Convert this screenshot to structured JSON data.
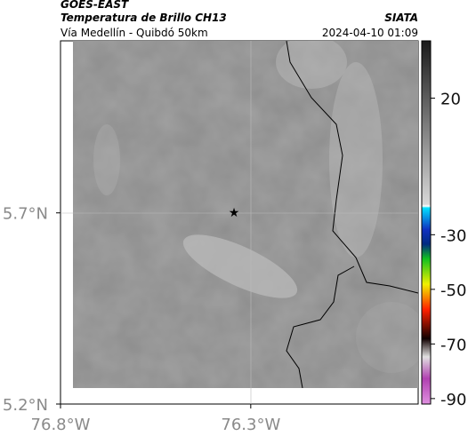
{
  "header": {
    "satellite": "GOES-EAST",
    "product": "Temperatura de Brillo CH13",
    "source": "SIATA",
    "route": "Vía Medellín - Quibdó 50km",
    "timestamp": "2024-04-10 01:09"
  },
  "map": {
    "lon_range": [
      -76.8,
      -75.86
    ],
    "lat_range": [
      5.2,
      6.15
    ],
    "lon_ticks": [
      {
        "value": -76.8,
        "label": "76.8°W"
      },
      {
        "value": -76.3,
        "label": "76.3°W"
      }
    ],
    "lat_ticks": [
      {
        "value": 5.7,
        "label": "5.7°N"
      },
      {
        "value": 5.2,
        "label": "5.2°N"
      }
    ]
  },
  "colorbar": {
    "range": [
      41,
      -92
    ],
    "ticks": [
      20,
      -30,
      -50,
      -70,
      -90
    ]
  }
}
